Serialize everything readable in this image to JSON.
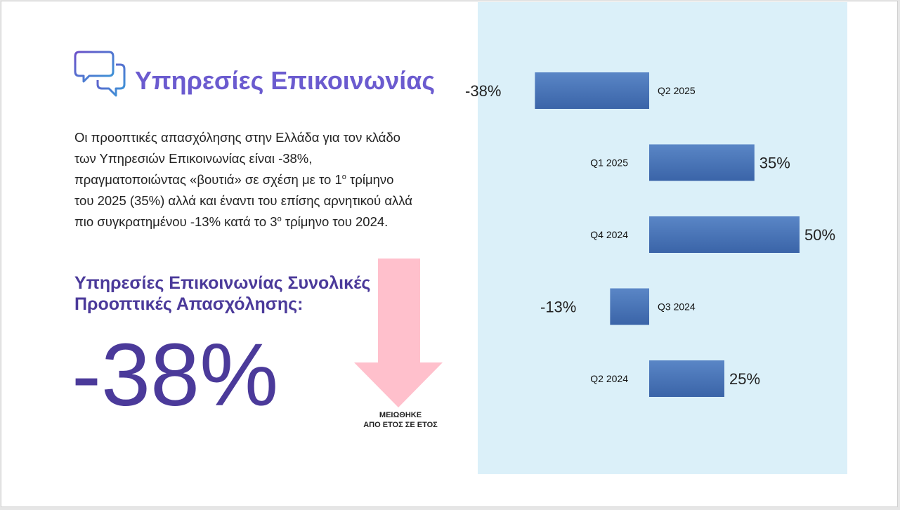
{
  "header": {
    "title": "Υπηρεσίες Επικοινωνίας",
    "icon": "chat-bubbles-icon"
  },
  "description": {
    "line1": "Οι προοπτικές απασχόλησης στην Ελλάδα για τον κλάδο",
    "line2": "των Υπηρεσιών Επικοινωνίας είναι -38%,",
    "line3_pre": "πραγματοποιώντας «βουτιά» σε σχέση με το 1",
    "line3_sup": "ο",
    "line3_post": " τρίμηνο",
    "line4": "του 2025 (35%) αλλά και έναντι του επίσης αρνητικού αλλά",
    "line5_pre": "πιο συγκρατημένου -13% κατά το 3",
    "line5_sup": "ο",
    "line5_post": " τρίμηνο του 2024."
  },
  "summary": {
    "subtitle_line1": "Υπηρεσίες Επικοινωνίας Συνολικές",
    "subtitle_line2": "Προοπτικές Απασχόλησης:",
    "value": "-38%",
    "trend_line1": "ΜΕΙΩΘΗΚΕ",
    "trend_line2": "ΑΠΟ ΕΤΟΣ ΣΕ ΕΤΟΣ",
    "trend_icon": "down-arrow-icon"
  },
  "colors": {
    "accent_title": "#6b5bcf",
    "accent_dark": "#4b3a9a",
    "arrow": "#ffc0cc",
    "panel": "#dbf0f9",
    "bar_top": "#5a86c6",
    "bar_bottom": "#3a64a8"
  },
  "chart_data": {
    "type": "bar",
    "orientation": "horizontal",
    "categories": [
      "Q2 2025",
      "Q1 2025",
      "Q4 2024",
      "Q3 2024",
      "Q2 2024"
    ],
    "values": [
      -38,
      35,
      50,
      -13,
      25
    ],
    "value_labels": [
      "-38%",
      "35%",
      "50%",
      "-13%",
      "25%"
    ],
    "title": "",
    "xlabel": "",
    "ylabel": "",
    "grid": false,
    "legend": "none"
  }
}
